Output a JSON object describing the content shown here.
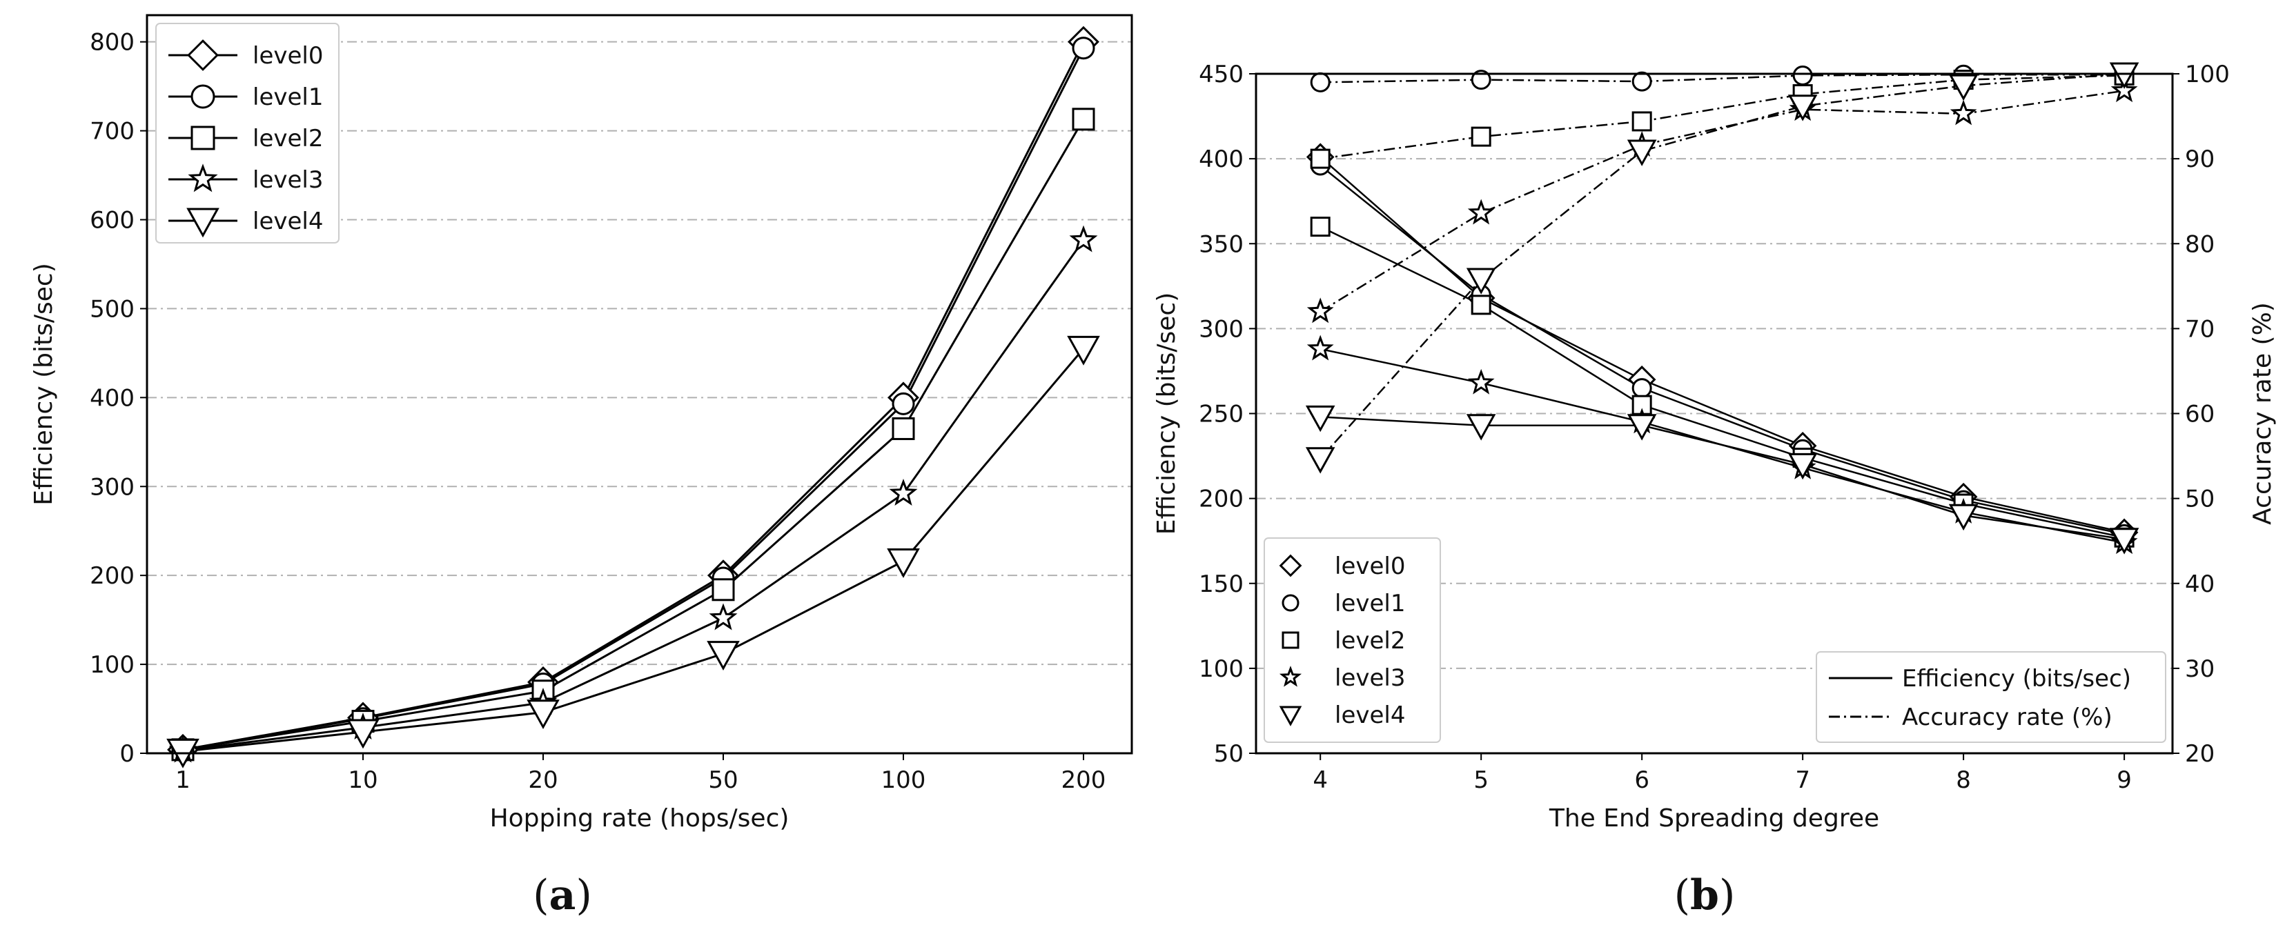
{
  "chart_data": [
    {
      "id": "a",
      "type": "line",
      "panel_label": "a",
      "xlabel": "Hopping rate (hops/sec)",
      "ylabel": "Efficiency (bits/sec)",
      "categories": [
        "1",
        "10",
        "20",
        "50",
        "100",
        "200"
      ],
      "ylim": [
        0,
        830
      ],
      "yticks": [
        0,
        100,
        200,
        300,
        400,
        500,
        600,
        700,
        800
      ],
      "grid": "horizontal dash-dot",
      "legend_position": "top-left",
      "series": [
        {
          "name": "level0",
          "marker": "diamond",
          "values": [
            4,
            40,
            80,
            200,
            400,
            800
          ]
        },
        {
          "name": "level1",
          "marker": "circle",
          "values": [
            4,
            39,
            78,
            197,
            393,
            793
          ]
        },
        {
          "name": "level2",
          "marker": "square",
          "values": [
            4,
            36,
            70,
            184,
            365,
            713
          ]
        },
        {
          "name": "level3",
          "marker": "star",
          "values": [
            3,
            29,
            57,
            152,
            292,
            577
          ]
        },
        {
          "name": "level4",
          "marker": "triangle-down",
          "values": [
            2,
            24,
            46,
            112,
            216,
            455
          ]
        }
      ]
    },
    {
      "id": "b",
      "type": "line",
      "panel_label": "b",
      "xlabel": "The End Spreading degree",
      "ylabel": "Efficiency (bits/sec)",
      "ylabel_right": "Accuracy rate (%)",
      "x": [
        4,
        5,
        6,
        7,
        8,
        9
      ],
      "xlim": [
        3.6,
        9.3
      ],
      "ylim": [
        50,
        450
      ],
      "yticks": [
        50,
        100,
        150,
        200,
        250,
        300,
        350,
        400,
        450
      ],
      "ylim_right": [
        20,
        100
      ],
      "yticks_right": [
        20,
        30,
        40,
        50,
        60,
        70,
        80,
        90,
        100
      ],
      "grid": "horizontal dash-dot",
      "legend_position": "bottom-left",
      "style_legend_position": "bottom-right",
      "style_legend": [
        {
          "label": "Efficiency (bits/sec)",
          "style": "solid"
        },
        {
          "label": "Accuracy rate (%)",
          "style": "dash-dot"
        }
      ],
      "series": [
        {
          "name": "level0",
          "marker": "diamond",
          "efficiency": [
            401,
            318,
            270,
            231,
            201,
            180
          ],
          "accuracy": [
            null,
            null,
            null,
            null,
            null,
            null
          ]
        },
        {
          "name": "level1",
          "marker": "circle",
          "efficiency": [
            396,
            320,
            265,
            229,
            199,
            179
          ],
          "accuracy": [
            99,
            99.3,
            99.1,
            99.8,
            99.9,
            99.9
          ]
        },
        {
          "name": "level2",
          "marker": "square",
          "efficiency": [
            360,
            314,
            255,
            224,
            197,
            177
          ],
          "accuracy": [
            90,
            92.6,
            94.4,
            97.6,
            99.3,
            99.8
          ]
        },
        {
          "name": "level3",
          "marker": "star",
          "efficiency": [
            288,
            268,
            245,
            218,
            192,
            174
          ],
          "accuracy": [
            72,
            83.6,
            91.6,
            95.8,
            95.3,
            98
          ]
        },
        {
          "name": "level4",
          "marker": "triangle-down",
          "efficiency": [
            248,
            243,
            243,
            220,
            190,
            176
          ],
          "accuracy": [
            54.7,
            75.8,
            90.9,
            96.2,
            98.6,
            100
          ]
        }
      ]
    }
  ]
}
